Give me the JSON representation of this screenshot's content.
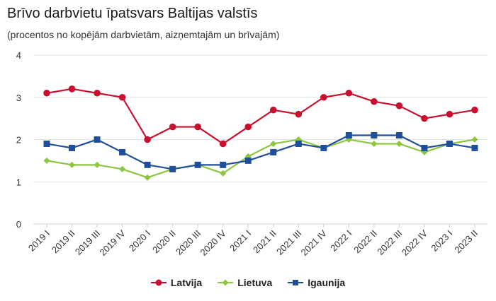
{
  "chart_data": {
    "type": "line",
    "title": "Brīvo darbvietu īpatsvars Baltijas valstīs",
    "subtitle": "(procentos no kopējām darbvietām, aizņemtajām un brīvajām)",
    "xlabel": "",
    "ylabel": "",
    "ylim": [
      0,
      4
    ],
    "yticks": [
      0,
      1,
      2,
      3,
      4
    ],
    "grid": true,
    "legend_position": "bottom",
    "categories": [
      "2019 I",
      "2019 II",
      "2019 III",
      "2019 IV",
      "2020 I",
      "2020 II",
      "2020 III",
      "2020 IV",
      "2021 I",
      "2021 II",
      "2021 III",
      "2021 IV",
      "2022 I",
      "2022 II",
      "2022 III",
      "2022 IV",
      "2023 I",
      "2023 II"
    ],
    "series": [
      {
        "name": "Latvija",
        "color": "#c8102e",
        "marker": "circle",
        "values": [
          3.1,
          3.2,
          3.1,
          3.0,
          2.0,
          2.3,
          2.3,
          1.9,
          2.3,
          2.7,
          2.6,
          3.0,
          3.1,
          2.9,
          2.8,
          2.5,
          2.6,
          2.7
        ]
      },
      {
        "name": "Lietuva",
        "color": "#8dc63f",
        "marker": "diamond",
        "values": [
          1.5,
          1.4,
          1.4,
          1.3,
          1.1,
          1.3,
          1.4,
          1.2,
          1.6,
          1.9,
          2.0,
          1.8,
          2.0,
          1.9,
          1.9,
          1.7,
          1.9,
          2.0
        ]
      },
      {
        "name": "Igaunija",
        "color": "#1f4e9c",
        "marker": "square",
        "values": [
          1.9,
          1.8,
          2.0,
          1.7,
          1.4,
          1.3,
          1.4,
          1.4,
          1.5,
          1.7,
          1.9,
          1.8,
          2.1,
          2.1,
          2.1,
          1.8,
          1.9,
          1.8
        ]
      }
    ]
  }
}
